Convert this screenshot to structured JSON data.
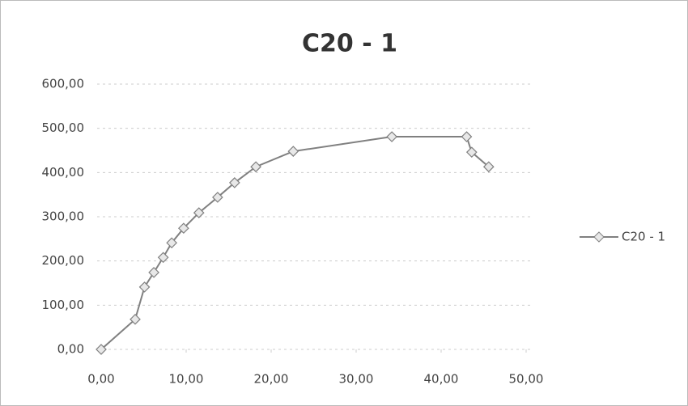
{
  "chart_data": {
    "type": "line",
    "title": "C20 - 1",
    "x": [
      0,
      4.0,
      5.1,
      6.2,
      7.3,
      8.3,
      9.7,
      11.5,
      13.7,
      15.7,
      18.2,
      22.6,
      34.2,
      43.0,
      43.6,
      45.6
    ],
    "series": [
      {
        "name": "C20 - 1",
        "color": "#808080",
        "values": [
          0,
          68,
          141,
          174,
          208,
          241,
          274,
          309,
          344,
          377,
          413,
          448,
          481,
          481,
          446,
          413
        ]
      }
    ],
    "xlim": [
      0,
      50
    ],
    "xticks": [
      {
        "value": 0,
        "label": "0,00"
      },
      {
        "value": 10,
        "label": "10,00"
      },
      {
        "value": 20,
        "label": "20,00"
      },
      {
        "value": 30,
        "label": "30,00"
      },
      {
        "value": 40,
        "label": "40,00"
      },
      {
        "value": 50,
        "label": "50,00"
      }
    ],
    "ylim": [
      0,
      600
    ],
    "yticks": [
      {
        "value": 0,
        "label": "0,00"
      },
      {
        "value": 100,
        "label": "100,00"
      },
      {
        "value": 200,
        "label": "200,00"
      },
      {
        "value": 300,
        "label": "300,00"
      },
      {
        "value": 400,
        "label": "400,00"
      },
      {
        "value": 500,
        "label": "500,00"
      },
      {
        "value": 600,
        "label": "600,00"
      }
    ],
    "grid": true,
    "legend": "right"
  }
}
